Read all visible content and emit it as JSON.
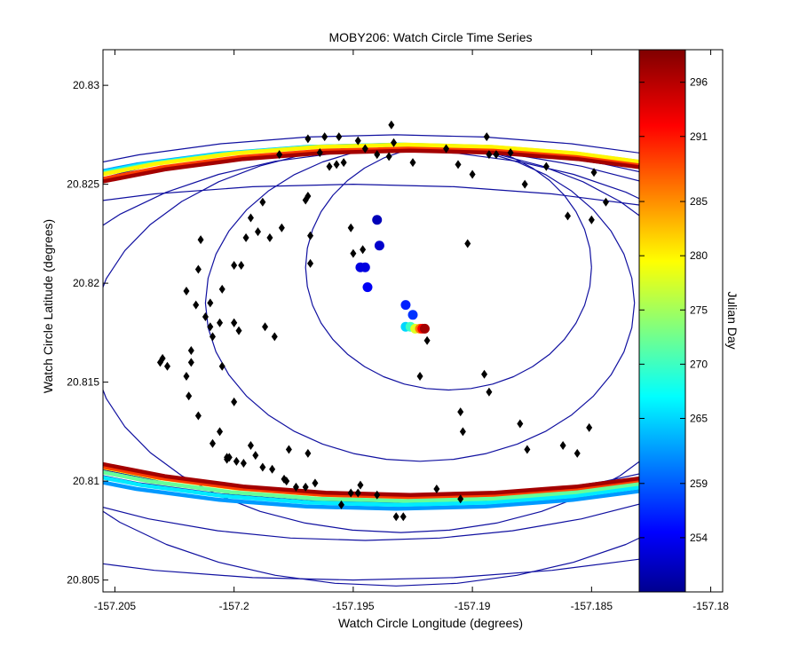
{
  "chart_data": {
    "type": "scatter",
    "title": "MOBY206: Watch Circle Time Series",
    "xlabel": "Watch Circle Longitude (degrees)",
    "ylabel": "Watch Circle Latitude (degrees)",
    "xlim": [
      -157.2055,
      -157.1795
    ],
    "ylim": [
      20.8044,
      20.8318
    ],
    "x_ticks": [
      -157.205,
      -157.2,
      -157.195,
      -157.19,
      -157.185,
      -157.18
    ],
    "x_tick_labels": [
      "-157.205",
      "-157.2",
      "-157.195",
      "-157.19",
      "-157.185",
      "-157.18"
    ],
    "y_ticks": [
      20.805,
      20.81,
      20.815,
      20.82,
      20.825,
      20.83
    ],
    "y_tick_labels": [
      "20.805",
      "20.81",
      "20.815",
      "20.82",
      "20.825",
      "20.83"
    ],
    "grid": false,
    "colorbar": {
      "label": "Julian Day",
      "range": [
        249,
        299
      ],
      "tick_values": [
        254,
        259,
        265,
        270,
        275,
        280,
        285,
        291,
        296
      ],
      "tick_labels": [
        "254",
        "259",
        "265",
        "270",
        "275",
        "280",
        "285",
        "291",
        "296"
      ],
      "colormap": [
        "#00008f",
        "#0000ff",
        "#00ffff",
        "#ffff00",
        "#ff0000",
        "#800000"
      ]
    },
    "colors": {
      "trace": "#1010a0",
      "marker": "#000000",
      "anchor_early": "#1a3fd8",
      "anchor_late": "#b00000"
    },
    "series": [
      {
        "kind": "watch-circle-ring",
        "day": 250,
        "cx": -157.191,
        "cy": 20.8208,
        "rx": 0.006,
        "ry": 0.0062,
        "thin": true
      },
      {
        "kind": "watch-circle-ring",
        "day": 251,
        "cx": -157.1922,
        "cy": 20.819,
        "rx": 0.009,
        "ry": 0.008,
        "thin": true
      },
      {
        "kind": "watch-circle-ring",
        "day": 252,
        "cx": -157.193,
        "cy": 20.8172,
        "rx": 0.013,
        "ry": 0.0098,
        "thin": true
      },
      {
        "kind": "watch-circle-ring",
        "day": 253,
        "cx": -157.1932,
        "cy": 20.8157,
        "rx": 0.0164,
        "ry": 0.011,
        "thin": true
      },
      {
        "kind": "watch-circle-ring",
        "day": 254,
        "cx": -157.194,
        "cy": 20.818,
        "rx": 0.021,
        "ry": 0.009,
        "thin": true
      },
      {
        "kind": "watch-circle-ring",
        "day": 255,
        "cx": -157.1945,
        "cy": 20.817,
        "rx": 0.02,
        "ry": 0.01,
        "thin": true
      },
      {
        "kind": "watch-circle-ring",
        "day": 256,
        "cx": -157.1928,
        "cy": 20.8179,
        "rx": 0.0225,
        "ry": 0.0089,
        "thin": true
      },
      {
        "kind": "watch-circle-ring",
        "day": 257,
        "cx": -157.1932,
        "cy": 20.8182,
        "rx": 0.0238,
        "ry": 0.0093,
        "thin": true
      },
      {
        "kind": "watch-circle-ring",
        "day": 258,
        "cx": -157.195,
        "cy": 20.815,
        "rx": 0.027,
        "ry": 0.01,
        "thin": true
      },
      {
        "kind": "watch-circle-ring",
        "day": 262,
        "cx": -157.1932,
        "cy": 20.8178,
        "rx": 0.024,
        "ry": 0.0092,
        "thin": false
      },
      {
        "kind": "watch-circle-ring",
        "day": 266,
        "cx": -157.1931,
        "cy": 20.8179,
        "rx": 0.0237,
        "ry": 0.0091,
        "thin": false
      },
      {
        "kind": "watch-circle-ring",
        "day": 272,
        "cx": -157.1929,
        "cy": 20.818,
        "rx": 0.0234,
        "ry": 0.009,
        "thin": false
      },
      {
        "kind": "watch-circle-ring",
        "day": 280,
        "cx": -157.1928,
        "cy": 20.8181,
        "rx": 0.0231,
        "ry": 0.0089,
        "thin": false
      },
      {
        "kind": "watch-circle-ring",
        "day": 289,
        "cx": -157.1927,
        "cy": 20.818,
        "rx": 0.0229,
        "ry": 0.0088,
        "thin": false
      },
      {
        "kind": "watch-circle-ring",
        "day": 297,
        "cx": -157.1926,
        "cy": 20.818,
        "rx": 0.0227,
        "ry": 0.0087,
        "thin": false
      }
    ],
    "anchor_positions": [
      {
        "x": -157.194,
        "y": 20.8232,
        "day": 251
      },
      {
        "x": -157.1939,
        "y": 20.8219,
        "day": 252
      },
      {
        "x": -157.1947,
        "y": 20.8208,
        "day": 253
      },
      {
        "x": -157.1945,
        "y": 20.8208,
        "day": 253
      },
      {
        "x": -157.1944,
        "y": 20.8198,
        "day": 254
      },
      {
        "x": -157.1928,
        "y": 20.8189,
        "day": 256
      },
      {
        "x": -157.1925,
        "y": 20.8184,
        "day": 257
      },
      {
        "x": -157.1928,
        "y": 20.8178,
        "day": 265
      },
      {
        "x": -157.1926,
        "y": 20.8178,
        "day": 270
      },
      {
        "x": -157.1924,
        "y": 20.8177,
        "day": 278
      },
      {
        "x": -157.1922,
        "y": 20.8177,
        "day": 286
      },
      {
        "x": -157.1921,
        "y": 20.8177,
        "day": 292
      },
      {
        "x": -157.192,
        "y": 20.8177,
        "day": 297
      }
    ],
    "diamond_markers": [
      {
        "x": -157.1934,
        "y": 20.828
      },
      {
        "x": -157.1956,
        "y": 20.8274
      },
      {
        "x": -157.1962,
        "y": 20.8274
      },
      {
        "x": -157.1969,
        "y": 20.8273
      },
      {
        "x": -157.1948,
        "y": 20.8272
      },
      {
        "x": -157.1933,
        "y": 20.8271
      },
      {
        "x": -157.1945,
        "y": 20.8268
      },
      {
        "x": -157.1964,
        "y": 20.8266
      },
      {
        "x": -157.194,
        "y": 20.8265
      },
      {
        "x": -157.1935,
        "y": 20.8264
      },
      {
        "x": -157.1981,
        "y": 20.8265
      },
      {
        "x": -157.1911,
        "y": 20.8268
      },
      {
        "x": -157.1894,
        "y": 20.8274
      },
      {
        "x": -157.189,
        "y": 20.8265
      },
      {
        "x": -157.1893,
        "y": 20.8265
      },
      {
        "x": -157.1884,
        "y": 20.8266
      },
      {
        "x": -157.196,
        "y": 20.8259
      },
      {
        "x": -157.1957,
        "y": 20.826
      },
      {
        "x": -157.1954,
        "y": 20.8261
      },
      {
        "x": -157.1925,
        "y": 20.8261
      },
      {
        "x": -157.1906,
        "y": 20.826
      },
      {
        "x": -157.19,
        "y": 20.8255
      },
      {
        "x": -157.1869,
        "y": 20.8259
      },
      {
        "x": -157.1849,
        "y": 20.8256
      },
      {
        "x": -157.1878,
        "y": 20.825
      },
      {
        "x": -157.1969,
        "y": 20.8244
      },
      {
        "x": -157.197,
        "y": 20.8242
      },
      {
        "x": -157.1988,
        "y": 20.8241
      },
      {
        "x": -157.1993,
        "y": 20.8233
      },
      {
        "x": -157.186,
        "y": 20.8234
      },
      {
        "x": -157.1844,
        "y": 20.8241
      },
      {
        "x": -157.185,
        "y": 20.8232
      },
      {
        "x": -157.1951,
        "y": 20.8228
      },
      {
        "x": -157.198,
        "y": 20.8228
      },
      {
        "x": -157.1985,
        "y": 20.8223
      },
      {
        "x": -157.1968,
        "y": 20.8224
      },
      {
        "x": -157.1995,
        "y": 20.8223
      },
      {
        "x": -157.199,
        "y": 20.8226
      },
      {
        "x": -157.1946,
        "y": 20.8217
      },
      {
        "x": -157.1902,
        "y": 20.822
      },
      {
        "x": -157.195,
        "y": 20.8215
      },
      {
        "x": -157.1968,
        "y": 20.821
      },
      {
        "x": -157.2014,
        "y": 20.8222
      },
      {
        "x": -157.2,
        "y": 20.8209
      },
      {
        "x": -157.2015,
        "y": 20.8207
      },
      {
        "x": -157.1997,
        "y": 20.8209
      },
      {
        "x": -157.202,
        "y": 20.8196
      },
      {
        "x": -157.201,
        "y": 20.819
      },
      {
        "x": -157.2016,
        "y": 20.8189
      },
      {
        "x": -157.2005,
        "y": 20.8197
      },
      {
        "x": -157.2012,
        "y": 20.8183
      },
      {
        "x": -157.2,
        "y": 20.818
      },
      {
        "x": -157.1998,
        "y": 20.8176
      },
      {
        "x": -157.2009,
        "y": 20.8173
      },
      {
        "x": -157.201,
        "y": 20.8178
      },
      {
        "x": -157.1987,
        "y": 20.8178
      },
      {
        "x": -157.2,
        "y": 20.818
      },
      {
        "x": -157.2006,
        "y": 20.818
      },
      {
        "x": -157.1983,
        "y": 20.8173
      },
      {
        "x": -157.1919,
        "y": 20.8171
      },
      {
        "x": -157.2018,
        "y": 20.8166
      },
      {
        "x": -157.203,
        "y": 20.8162
      },
      {
        "x": -157.2031,
        "y": 20.816
      },
      {
        "x": -157.2018,
        "y": 20.816
      },
      {
        "x": -157.2028,
        "y": 20.8158
      },
      {
        "x": -157.2005,
        "y": 20.8158
      },
      {
        "x": -157.202,
        "y": 20.8153
      },
      {
        "x": -157.1922,
        "y": 20.8153
      },
      {
        "x": -157.1895,
        "y": 20.8154
      },
      {
        "x": -157.2019,
        "y": 20.8143
      },
      {
        "x": -157.2,
        "y": 20.814
      },
      {
        "x": -157.1893,
        "y": 20.8145
      },
      {
        "x": -157.1905,
        "y": 20.8135
      },
      {
        "x": -157.2015,
        "y": 20.8133
      },
      {
        "x": -157.2006,
        "y": 20.8125
      },
      {
        "x": -157.1904,
        "y": 20.8125
      },
      {
        "x": -157.188,
        "y": 20.8129
      },
      {
        "x": -157.2009,
        "y": 20.8119
      },
      {
        "x": -157.2003,
        "y": 20.8112
      },
      {
        "x": -157.2003,
        "y": 20.8111
      },
      {
        "x": -157.1993,
        "y": 20.8118
      },
      {
        "x": -157.1977,
        "y": 20.8116
      },
      {
        "x": -157.1969,
        "y": 20.8114
      },
      {
        "x": -157.1877,
        "y": 20.8116
      },
      {
        "x": -157.1862,
        "y": 20.8118
      },
      {
        "x": -157.1991,
        "y": 20.8113
      },
      {
        "x": -157.2002,
        "y": 20.8112
      },
      {
        "x": -157.1999,
        "y": 20.811
      },
      {
        "x": -157.1996,
        "y": 20.8109
      },
      {
        "x": -157.1988,
        "y": 20.8107
      },
      {
        "x": -157.1984,
        "y": 20.8106
      },
      {
        "x": -157.1979,
        "y": 20.8101
      },
      {
        "x": -157.1978,
        "y": 20.81
      },
      {
        "x": -157.197,
        "y": 20.8097
      },
      {
        "x": -157.1966,
        "y": 20.8099
      },
      {
        "x": -157.1974,
        "y": 20.8097
      },
      {
        "x": -157.1955,
        "y": 20.8088
      },
      {
        "x": -157.1948,
        "y": 20.8094
      },
      {
        "x": -157.194,
        "y": 20.8093
      },
      {
        "x": -157.1932,
        "y": 20.8082
      },
      {
        "x": -157.1929,
        "y": 20.8082
      },
      {
        "x": -157.1915,
        "y": 20.8096
      },
      {
        "x": -157.1905,
        "y": 20.8091
      },
      {
        "x": -157.1851,
        "y": 20.8127
      },
      {
        "x": -157.1856,
        "y": 20.8114
      },
      {
        "x": -157.1947,
        "y": 20.8098
      },
      {
        "x": -157.1951,
        "y": 20.8094
      }
    ]
  }
}
